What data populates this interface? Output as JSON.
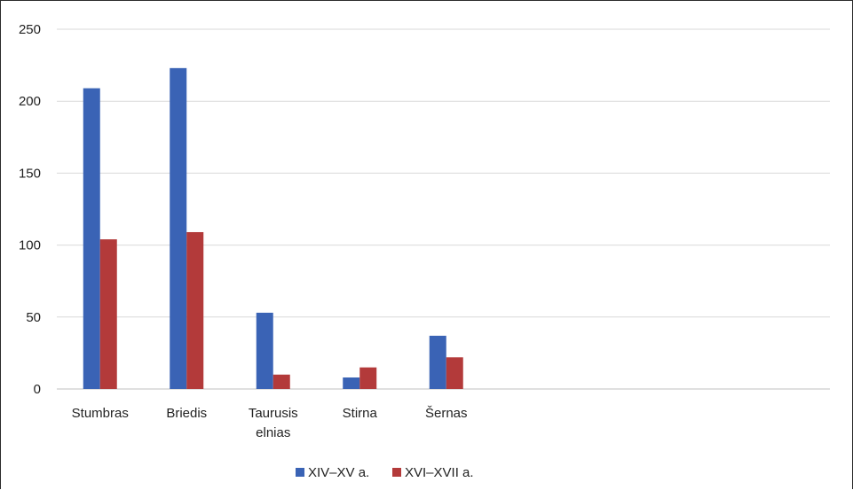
{
  "chart_data": {
    "type": "bar",
    "categories": [
      "Stumbras",
      "Briedis",
      "Taurusis elnias",
      "Stirna",
      "Šernas"
    ],
    "category_label_lines": [
      [
        "Stumbras"
      ],
      [
        "Briedis"
      ],
      [
        "Taurusis",
        "elnias"
      ],
      [
        "Stirna"
      ],
      [
        "Šernas"
      ]
    ],
    "series": [
      {
        "name": "XIV–XV a.",
        "values": [
          209,
          223,
          53,
          8,
          37
        ],
        "color": "#3a63b5"
      },
      {
        "name": "XVI–XVII a.",
        "values": [
          104,
          109,
          10,
          15,
          22
        ],
        "color": "#b33a3a"
      }
    ],
    "ylim": [
      0,
      250
    ],
    "yticks": [
      0,
      50,
      100,
      150,
      200,
      250
    ],
    "grid": true,
    "legend_position": "bottom",
    "title": "",
    "xlabel": "",
    "ylabel": ""
  }
}
